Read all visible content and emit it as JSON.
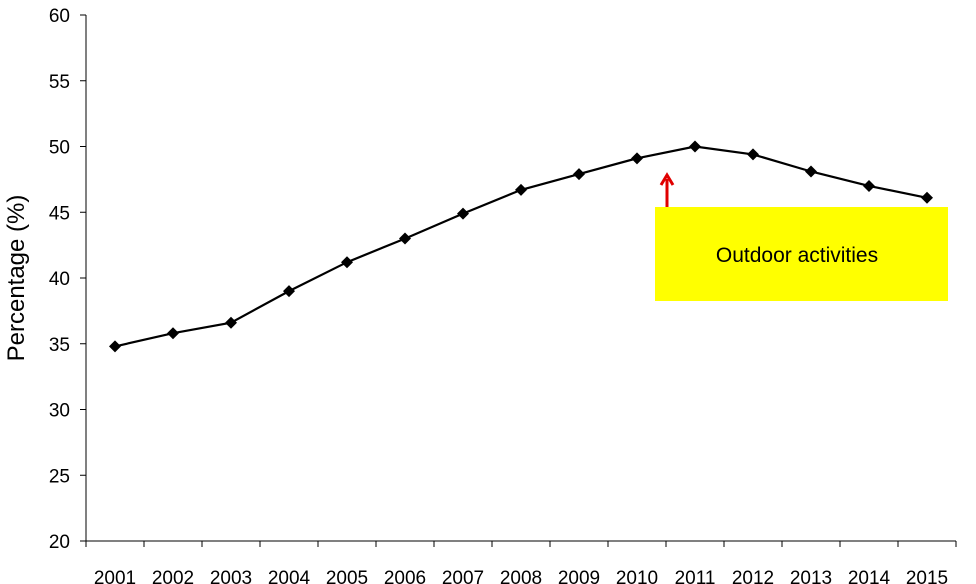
{
  "chart_data": {
    "type": "line",
    "title": "",
    "xlabel": "",
    "ylabel": "Percentage (%)",
    "ylim": [
      20,
      60
    ],
    "yticks": [
      "20",
      "25",
      "30",
      "35",
      "40",
      "45",
      "50",
      "55",
      "60"
    ],
    "categories": [
      "2001",
      "2002",
      "2003",
      "2004",
      "2005",
      "2006",
      "2007",
      "2008",
      "2009",
      "2010",
      "2011",
      "2012",
      "2013",
      "2014",
      "2015"
    ],
    "series": [
      {
        "values": [
          34.8,
          35.8,
          36.6,
          39.0,
          41.2,
          43.0,
          44.9,
          46.7,
          47.9,
          49.1,
          50.0,
          49.4,
          48.1,
          47.0,
          46.1
        ]
      }
    ],
    "grid": false,
    "legend": "none",
    "line_color": "#000000",
    "marker": "diamond",
    "annotation": {
      "text": "Outdoor activities",
      "box_color": "#ffff00",
      "arrow_color": "#e00000",
      "points_to_category": "2010"
    }
  }
}
